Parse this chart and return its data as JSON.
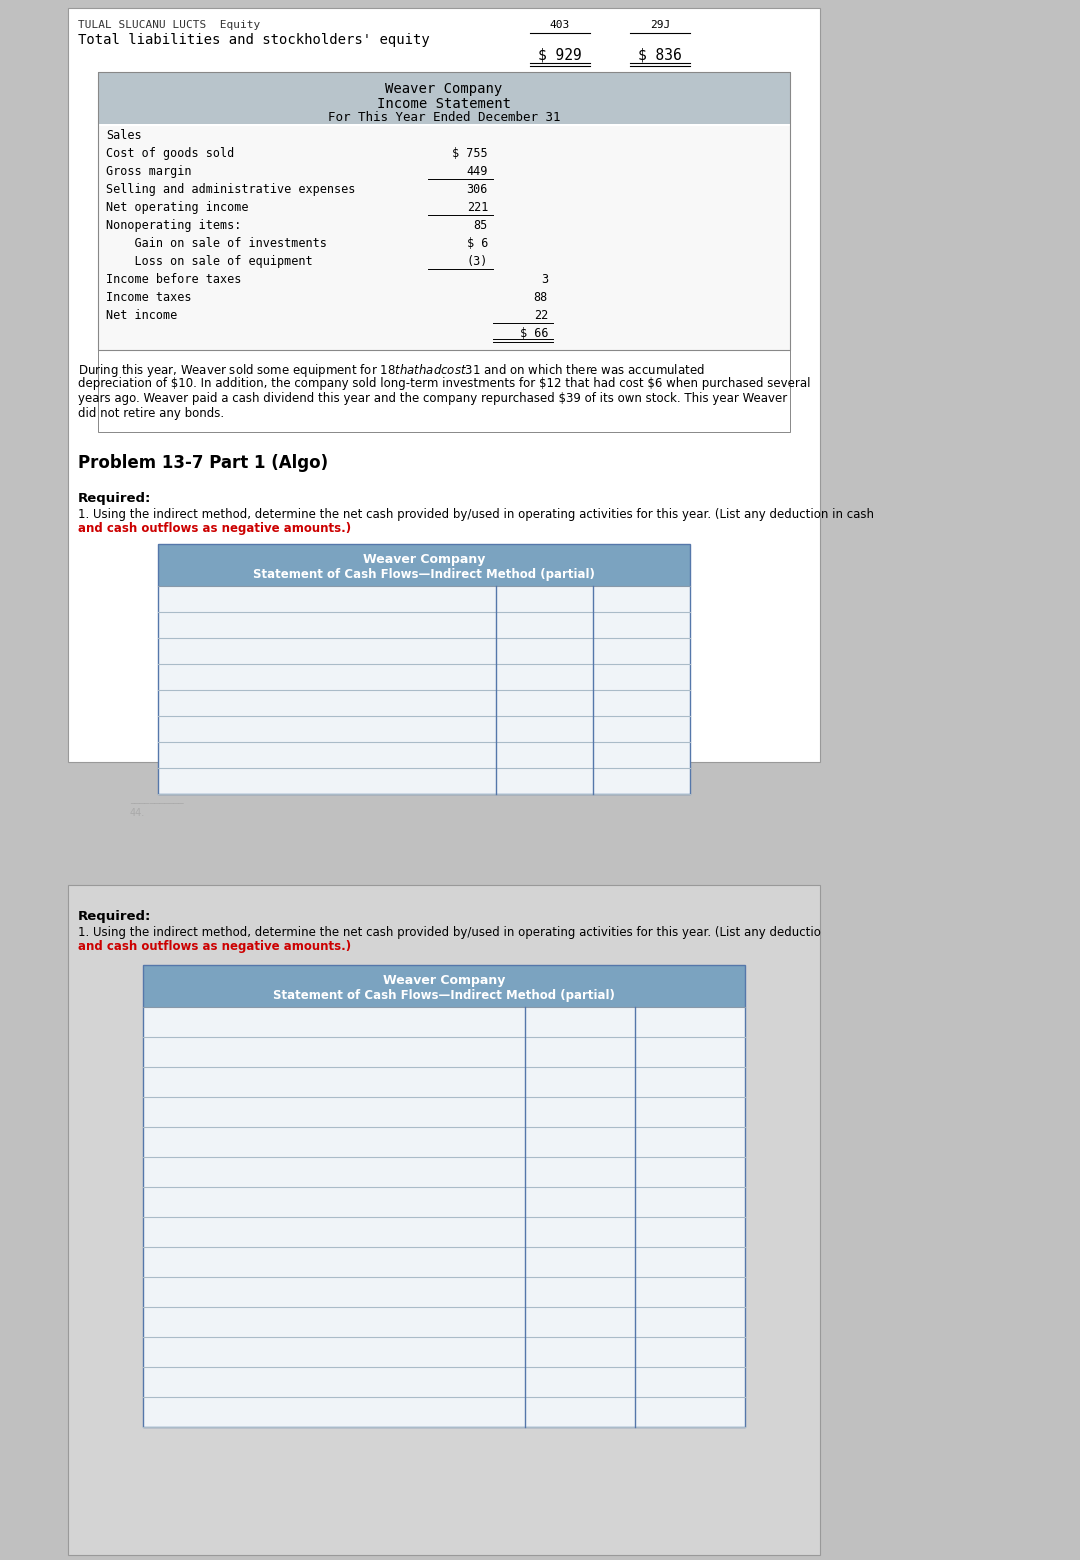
{
  "bg_color": "#c0c0c0",
  "panel1_bg": "#ffffff",
  "panel2_bg": "#d4d4d4",
  "header_bg": "#b8c4cb",
  "table_header_bg": "#7ba3c0",
  "body_text_color": "#111111",
  "red_text_color": "#cc0000",
  "top_label1": "TULAL SLUCANU LUCTS  Equity",
  "top_label2": "Total liabilities and stockholders' equity",
  "top_col1_label": "403",
  "top_col2_label": "29J",
  "top_val1": "$ 929",
  "top_val2": "$ 836",
  "income_title1": "Weaver Company",
  "income_title2": "Income Statement",
  "income_title3": "For This Year Ended December 31",
  "income_rows": [
    {
      "label": "Sales",
      "col1": "",
      "col2": ""
    },
    {
      "label": "Cost of goods sold",
      "col1": "$ 755",
      "col2": ""
    },
    {
      "label": "Gross margin",
      "col1": "449",
      "col2": "",
      "ul1": true
    },
    {
      "label": "Selling and administrative expenses",
      "col1": "306",
      "col2": ""
    },
    {
      "label": "Net operating income",
      "col1": "221",
      "col2": "",
      "ul1": true
    },
    {
      "label": "Nonoperating items:",
      "col1": "85",
      "col2": ""
    },
    {
      "label": "    Gain on sale of investments",
      "col1": "$ 6",
      "col2": ""
    },
    {
      "label": "    Loss on sale of equipment",
      "col1": "(3)",
      "col2": "",
      "ul1": true
    },
    {
      "label": "Income before taxes",
      "col1": "",
      "col2": "3"
    },
    {
      "label": "Income taxes",
      "col1": "",
      "col2": "88"
    },
    {
      "label": "Net income",
      "col1": "",
      "col2": "22",
      "ul2": true
    },
    {
      "label": "",
      "col1": "",
      "col2": "$ 66",
      "double_ul2": true
    }
  ],
  "description_lines": [
    "During this year, Weaver sold some equipment for $18 that had cost $31 and on which there was accumulated",
    "depreciation of $10. In addition, the company sold long-term investments for $12 that had cost $6 when purchased several",
    "years ago. Weaver paid a cash dividend this year and the company repurchased $39 of its own stock. This year Weaver",
    "did not retire any bonds."
  ],
  "problem_label": "Problem 13-7 Part 1 (Algo)",
  "required_label": "Required:",
  "required_text1": "1. Using the indirect method, determine the net cash provided by/used in operating activities for this year. (List any deduction in cash",
  "required_text2_normal": "",
  "required_text2_bold_red": "and cash outflows as negative amounts.)",
  "cash_flow_title1": "Weaver Company",
  "cash_flow_title2": "Statement of Cash Flows—Indirect Method (partial)",
  "num_table_rows": 8,
  "panel2_required_label": "Required:",
  "panel2_required_text1": "1. Using the indirect method, determine the net cash provided by/used in operating activities for this year. (List any deductio",
  "panel2_required_text2": "and cash outflows as negative amounts.)",
  "panel2_cash_flow_title1": "Weaver Company",
  "panel2_cash_flow_title2": "Statement of Cash Flows—Indirect Method (partial)",
  "panel2_num_table_rows": 14
}
